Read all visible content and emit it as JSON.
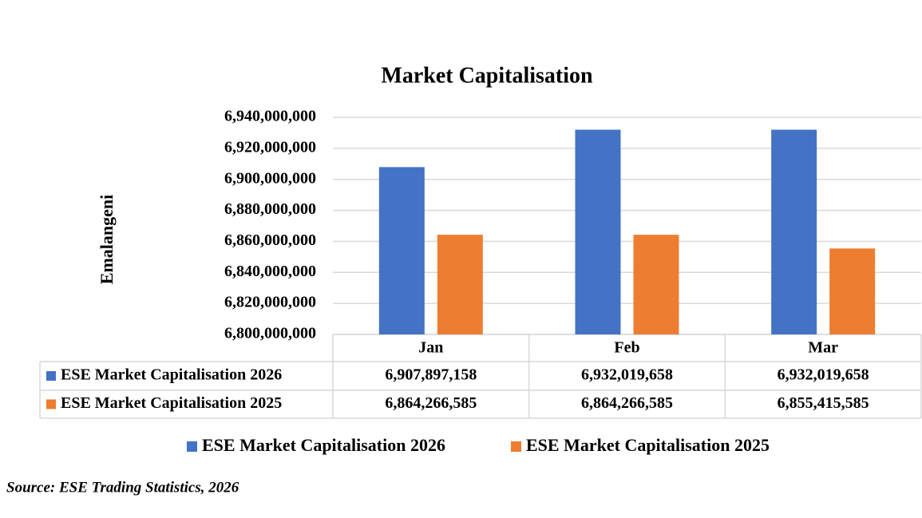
{
  "chart_data": {
    "type": "bar",
    "title": "Market Capitalisation",
    "y_label": "Emalangeni",
    "categories": [
      "Jan",
      "Feb",
      "Mar"
    ],
    "series": [
      {
        "name": "ESE Market Capitalisation 2026",
        "color": "#4472c4",
        "values": [
          6907897158,
          6932019658,
          6932019658
        ],
        "value_labels": [
          "6,907,897,158",
          "6,932,019,658",
          "6,932,019,658"
        ]
      },
      {
        "name": "ESE Market Capitalisation 2025",
        "color": "#ed7d31",
        "values": [
          6864266585,
          6864266585,
          6855415585
        ],
        "value_labels": [
          "6,864,266,585",
          "6,864,266,585",
          "6,855,415,585"
        ]
      }
    ],
    "ylim": [
      6800000000,
      6940000000
    ],
    "yticks": [
      {
        "value": 6800000000,
        "label": "6,800,000,000"
      },
      {
        "value": 6820000000,
        "label": "6,820,000,000"
      },
      {
        "value": 6840000000,
        "label": "6,840,000,000"
      },
      {
        "value": 6860000000,
        "label": "6,860,000,000"
      },
      {
        "value": 6880000000,
        "label": "6,880,000,000"
      },
      {
        "value": 6900000000,
        "label": "6,900,000,000"
      },
      {
        "value": 6920000000,
        "label": "6,920,000,000"
      },
      {
        "value": 6940000000,
        "label": "6,940,000,000"
      }
    ],
    "grid": true,
    "source": "Source: ESE Trading Statistics, 2026"
  }
}
